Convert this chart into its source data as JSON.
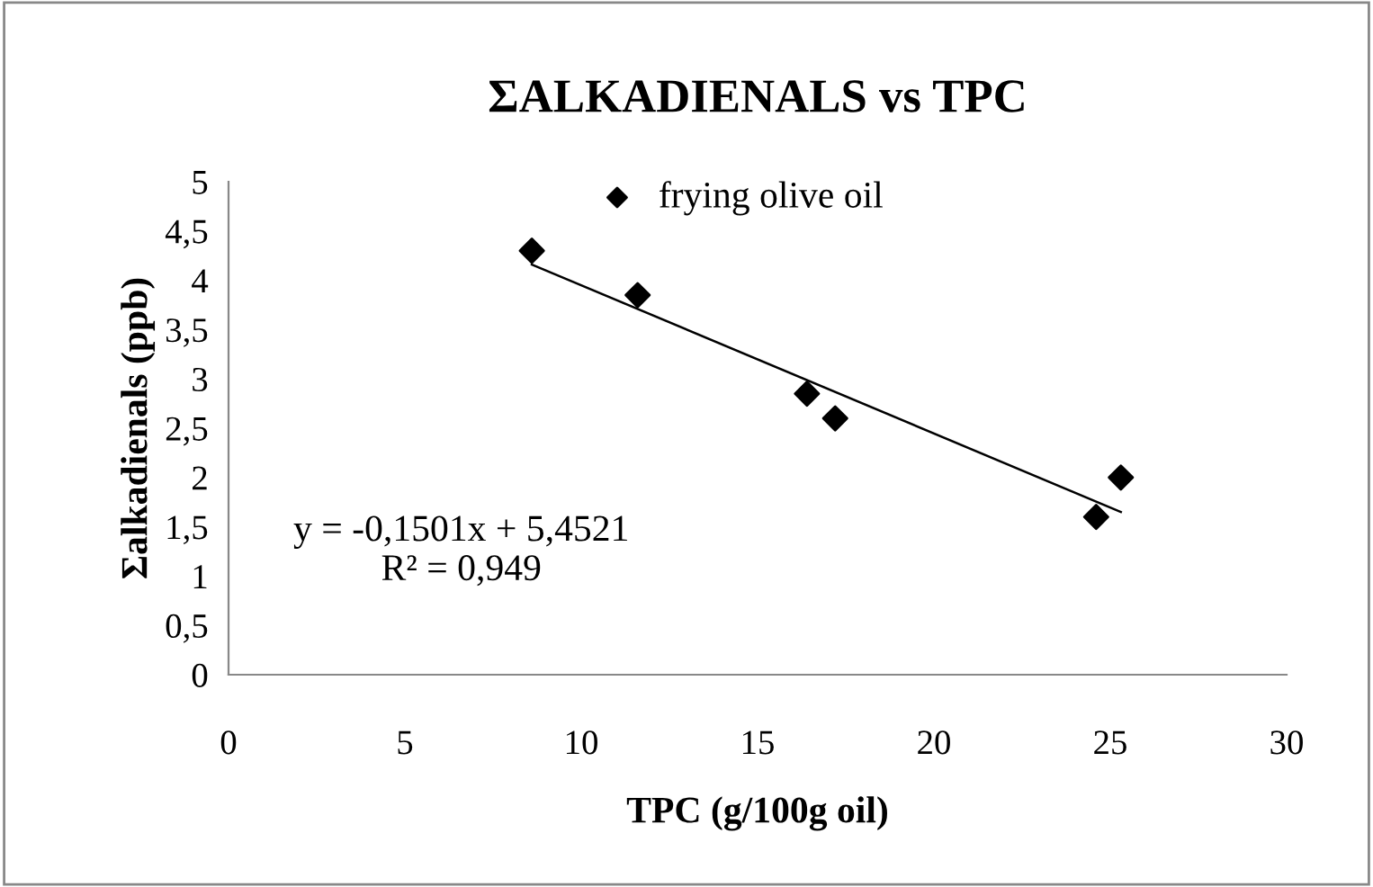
{
  "chart_data": {
    "type": "scatter",
    "title": "ΣALKADIENALS vs TPC",
    "xlabel": "TPC (g/100g oil)",
    "ylabel": "Σalkadienals (ppb)",
    "series": [
      {
        "name": "frying olive oil",
        "marker": "diamond",
        "color": "#000000",
        "x": [
          8.6,
          11.6,
          16.4,
          17.2,
          24.6,
          25.3
        ],
        "values": [
          4.3,
          3.85,
          2.85,
          2.6,
          1.6,
          2.0
        ]
      },
      {
        "type": "line",
        "marker": "none",
        "color": "#000000",
        "x": [
          8.6,
          25.3
        ],
        "values": [
          4.16,
          1.65
        ]
      }
    ],
    "annotations": [
      "y = -0,1501x + 5,4521\nR² = 0,949"
    ],
    "xlim": [
      0,
      30
    ],
    "xticks": [
      0,
      5,
      10,
      15,
      20,
      25,
      30
    ],
    "ylim": [
      0,
      5
    ],
    "yticks": [
      0,
      {
        "value": 0.5,
        "label": "0,5"
      },
      1,
      {
        "value": 1.5,
        "label": "1,5"
      },
      2,
      {
        "value": 2.5,
        "label": "2,5"
      },
      3,
      {
        "value": 3.5,
        "label": "3,5"
      },
      4,
      {
        "value": 4.5,
        "label": "4,5"
      },
      5
    ],
    "grid": false,
    "legend": "top"
  }
}
